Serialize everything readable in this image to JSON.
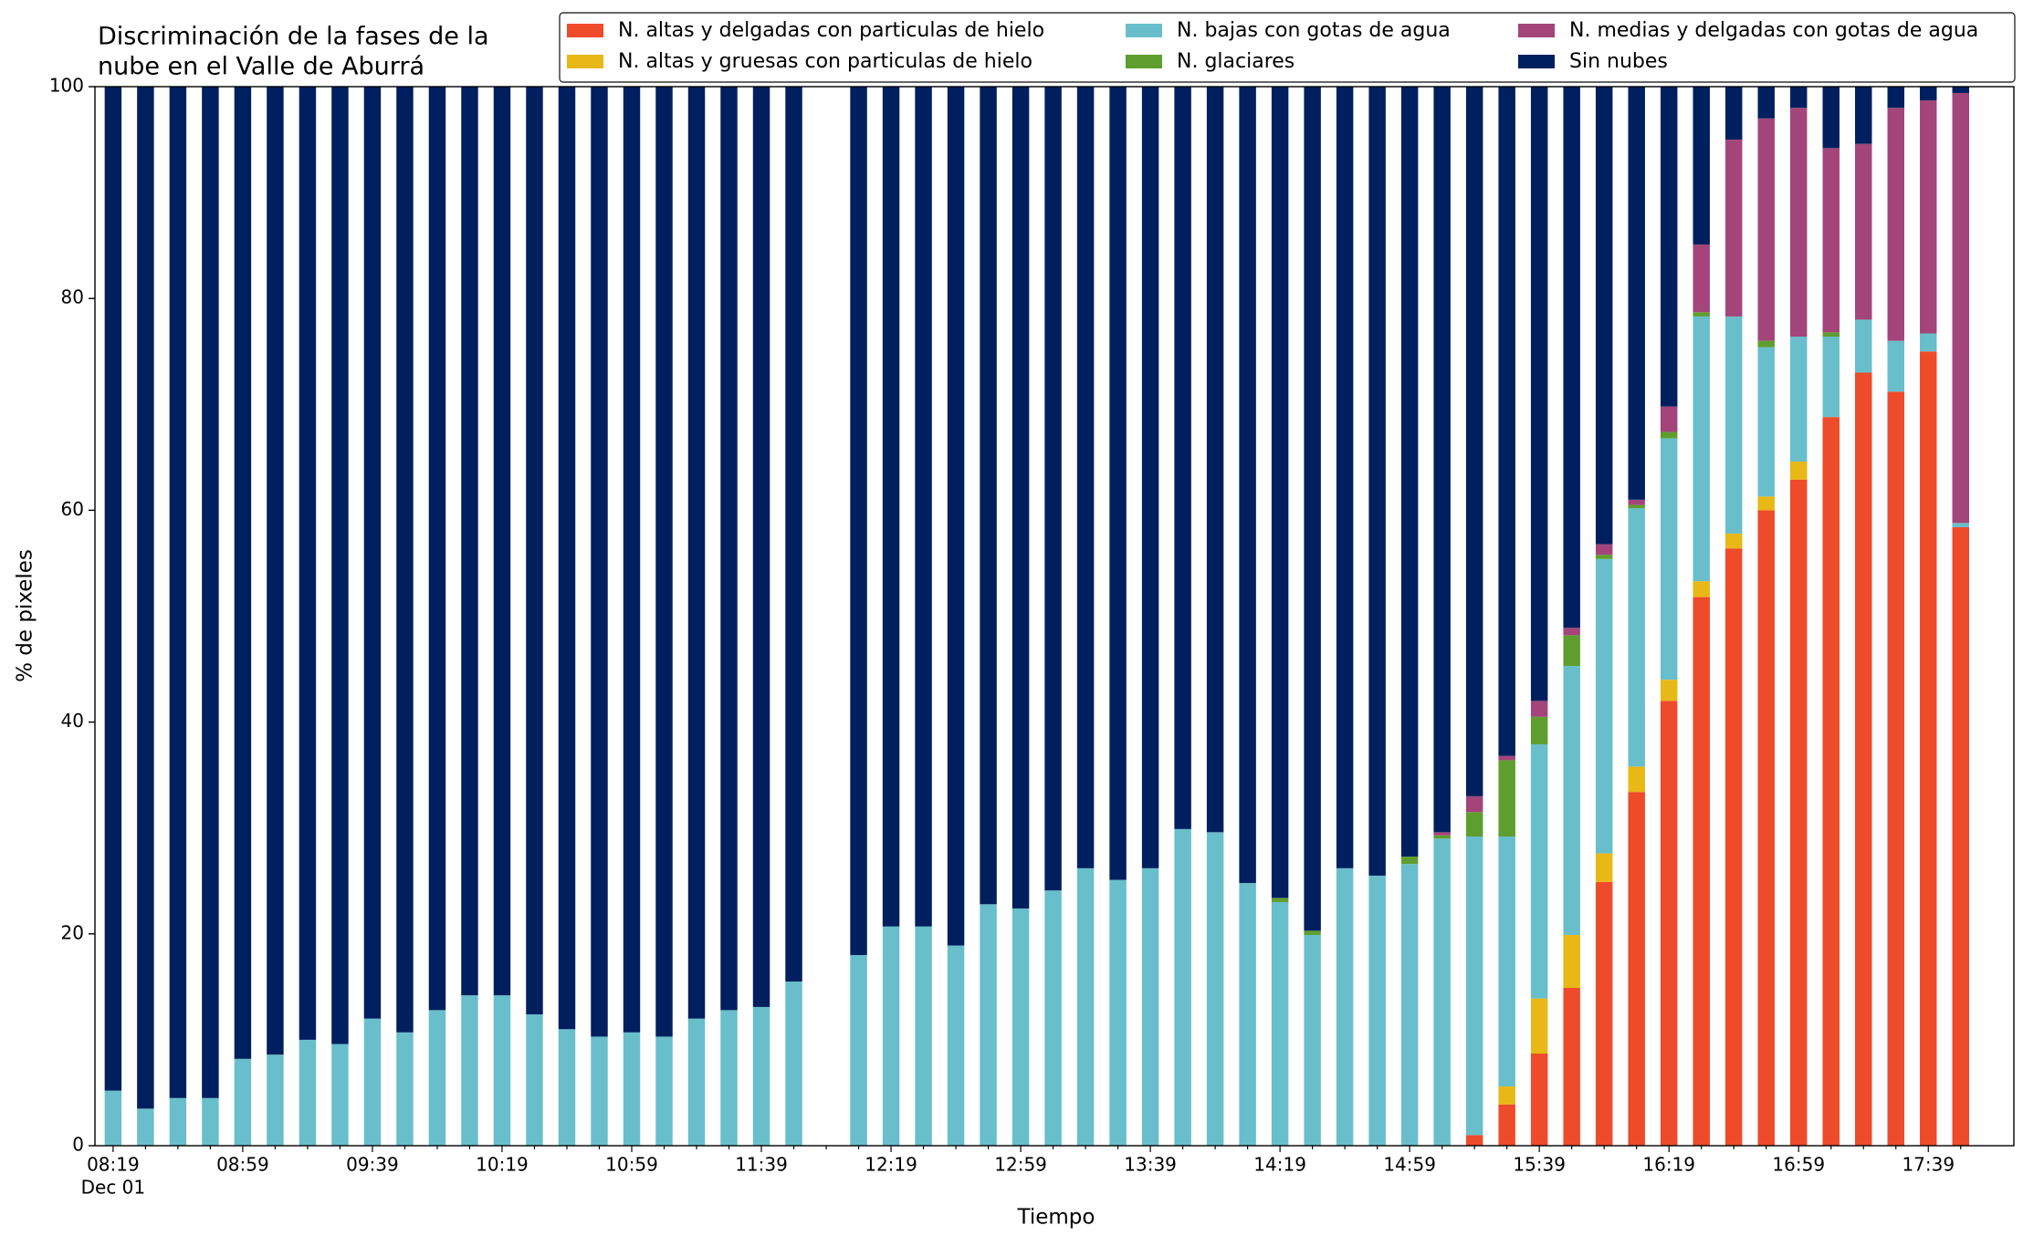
{
  "chart_data": {
    "type": "stacked_bar",
    "title": [
      "Discriminación de la fases de la",
      "nube en el Valle de Aburrá"
    ],
    "xlabel": "Tiempo",
    "ylabel": "% de pixeles",
    "date_label": "Dec 01",
    "categories": [
      "08:19",
      null,
      null,
      null,
      "08:59",
      null,
      null,
      null,
      "09:39",
      null,
      null,
      null,
      "10:19",
      null,
      null,
      null,
      "10:59",
      null,
      null,
      null,
      "11:39",
      null,
      null,
      null,
      "12:19",
      null,
      null,
      null,
      "12:59",
      null,
      null,
      null,
      "13:39",
      null,
      null,
      null,
      "14:19",
      null,
      null,
      null,
      "14:59",
      null,
      null,
      null,
      "15:39",
      null,
      null,
      null,
      "16:19",
      null,
      null,
      null,
      "16:59",
      null,
      null,
      null,
      "17:39",
      null
    ],
    "ylim": [
      0,
      100
    ],
    "yticks": [
      0,
      20,
      40,
      60,
      80,
      100
    ],
    "grid": false,
    "legend": "top right",
    "series": [
      {
        "name": "N. altas y delgadas con particulas de hielo",
        "color": "#ee4b2b",
        "values": [
          0,
          0,
          0,
          0,
          0,
          0,
          0,
          0,
          0,
          0,
          0,
          0,
          0,
          0,
          0,
          0,
          0,
          0,
          0,
          0,
          0,
          0,
          null,
          0,
          0,
          0,
          0,
          0,
          0,
          0,
          0,
          0,
          0,
          0,
          0,
          0,
          0,
          0,
          0,
          0,
          0,
          0,
          1,
          3.9,
          8.7,
          14.9,
          24.9,
          33.4,
          42,
          51.8,
          56.4,
          60,
          62.9,
          68.8,
          73,
          71.2,
          75,
          58.4
        ]
      },
      {
        "name": "N. altas y gruesas con particulas de hielo",
        "color": "#e8b816",
        "values": [
          0,
          0,
          0,
          0,
          0,
          0,
          0,
          0,
          0,
          0,
          0,
          0,
          0,
          0,
          0,
          0,
          0,
          0,
          0,
          0,
          0,
          0,
          null,
          0,
          0,
          0,
          0,
          0,
          0,
          0,
          0,
          0,
          0,
          0,
          0,
          0,
          0,
          0,
          0,
          0,
          0,
          0,
          0,
          1.7,
          5.2,
          5,
          2.7,
          2.4,
          2,
          1.5,
          1.4,
          1.3,
          1.7,
          0,
          0,
          0,
          0,
          0
        ]
      },
      {
        "name": "N. bajas con gotas de agua",
        "color": "#68bfcb",
        "values": [
          5.2,
          3.5,
          4.5,
          4.5,
          8.2,
          8.6,
          10,
          9.6,
          12,
          10.7,
          12.8,
          14.2,
          14.2,
          12.4,
          11,
          10.3,
          10.7,
          10.3,
          12,
          12.8,
          13.1,
          15.5,
          null,
          18,
          20.7,
          20.7,
          18.9,
          22.8,
          22.4,
          24.1,
          26.2,
          25.1,
          26.2,
          29.9,
          29.6,
          24.8,
          23,
          19.9,
          26.2,
          25.5,
          26.6,
          29,
          28.2,
          23.6,
          24,
          25.4,
          27.8,
          24.4,
          22.8,
          25,
          20.5,
          14.1,
          11.8,
          7.6,
          5,
          4.8,
          1.7,
          0.4
        ]
      },
      {
        "name": "N. glaciares",
        "color": "#5e9e2e",
        "values": [
          0,
          0,
          0,
          0,
          0,
          0,
          0,
          0,
          0,
          0,
          0,
          0,
          0,
          0,
          0,
          0,
          0,
          0,
          0,
          0,
          0,
          0,
          null,
          0,
          0,
          0,
          0,
          0,
          0,
          0,
          0,
          0,
          0,
          0,
          0,
          0,
          0.4,
          0.4,
          0,
          0,
          0.7,
          0.3,
          2.3,
          7.2,
          2.6,
          2.9,
          0.4,
          0.3,
          0.6,
          0.4,
          0,
          0.6,
          0,
          0.4,
          0,
          0,
          0,
          0
        ]
      },
      {
        "name": "N. medias y delgadas con gotas de agua",
        "color": "#a3457a",
        "values": [
          0,
          0,
          0,
          0,
          0,
          0,
          0,
          0,
          0,
          0,
          0,
          0,
          0,
          0,
          0,
          0,
          0,
          0,
          0,
          0,
          0,
          0,
          null,
          0,
          0,
          0,
          0,
          0,
          0,
          0,
          0,
          0,
          0,
          0,
          0,
          0,
          0,
          0,
          0,
          0,
          0,
          0.3,
          1.5,
          0.4,
          1.5,
          0.7,
          1,
          0.5,
          2.4,
          6.4,
          16.7,
          21,
          21.6,
          17.4,
          16.6,
          22,
          22,
          40.6
        ]
      },
      {
        "name": "Sin nubes",
        "color": "#001f5f",
        "values": [
          94.8,
          96.5,
          95.5,
          95.5,
          91.8,
          91.4,
          90,
          90.4,
          88,
          89.3,
          87.2,
          85.8,
          85.8,
          87.6,
          89,
          89.7,
          89.3,
          89.7,
          88,
          87.2,
          86.9,
          84.5,
          null,
          82,
          79.3,
          79.3,
          81.1,
          77.2,
          77.6,
          75.9,
          73.8,
          74.9,
          73.8,
          70.1,
          70.4,
          75.2,
          76.6,
          79.7,
          73.8,
          74.5,
          72.7,
          70.4,
          67,
          63.2,
          58,
          51.1,
          43.2,
          39,
          30.2,
          14.9,
          5,
          3,
          2,
          5.8,
          5.4,
          2,
          1.3,
          0.6
        ]
      }
    ]
  }
}
